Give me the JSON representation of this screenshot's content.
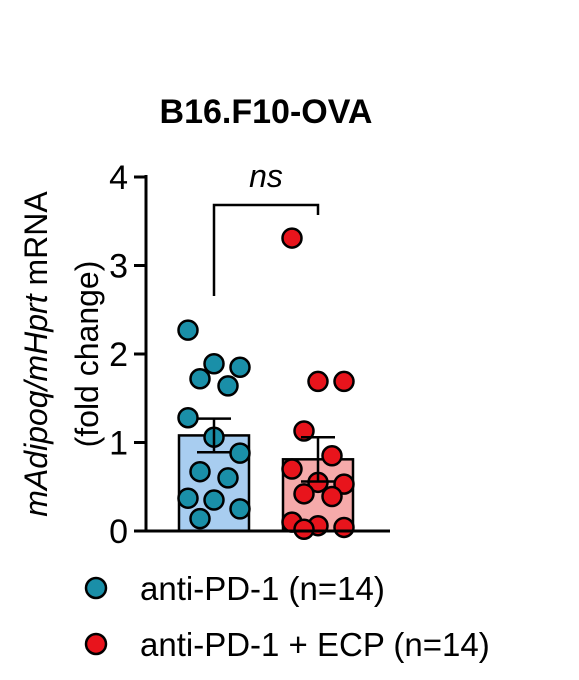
{
  "chart_data": {
    "type": "bar",
    "title": "B16.F10-OVA",
    "ylabel": {
      "parts": [
        {
          "text": "mAdipoq",
          "italic": true
        },
        {
          "text": "/",
          "italic": true
        },
        {
          "text": "mHprt",
          "italic": true
        },
        {
          "text": " mRNA",
          "italic": false
        }
      ],
      "line2": "(fold change)"
    },
    "ylim": [
      0,
      4
    ],
    "yticks": [
      "0",
      "1",
      "2",
      "3",
      "4"
    ],
    "xlabel": "",
    "grid": false,
    "legend_position": "bottom",
    "significance": {
      "label": "ns",
      "between": [
        0,
        1
      ]
    },
    "series": [
      {
        "name": "anti-PD-1 (n=14)",
        "mean": 1.08,
        "sem": 0.19,
        "bar_color": "#a8cdf0",
        "point_color": "#1a8fa8",
        "points": [
          2.27,
          1.89,
          1.85,
          1.72,
          1.64,
          1.28,
          1.06,
          0.88,
          0.67,
          0.6,
          0.37,
          0.35,
          0.25,
          0.14
        ]
      },
      {
        "name": "anti-PD-1 + ECP (n=14)",
        "mean": 0.81,
        "sem": 0.25,
        "bar_color": "#f5aaaa",
        "point_color": "#e8141c",
        "points": [
          3.31,
          1.69,
          1.69,
          1.13,
          0.85,
          0.7,
          0.55,
          0.53,
          0.42,
          0.39,
          0.1,
          0.06,
          0.04,
          0.02
        ]
      }
    ]
  }
}
